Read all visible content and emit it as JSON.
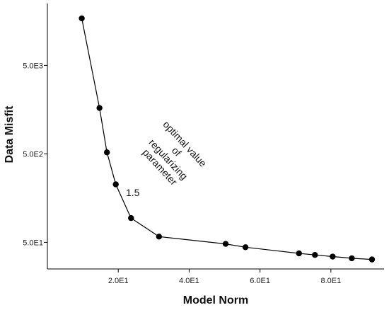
{
  "chart_data": {
    "type": "line",
    "title": "",
    "xlabel": "Model Norm",
    "ylabel": "Data Misfit",
    "x_scale": "linear",
    "y_scale": "log",
    "xlim": [
      0,
      95
    ],
    "ylim": [
      25,
      25000
    ],
    "x_ticks": [
      {
        "value": 20,
        "label": "2.0E1"
      },
      {
        "value": 40,
        "label": "4.0E1"
      },
      {
        "value": 60,
        "label": "6.0E1"
      },
      {
        "value": 80,
        "label": "8.0E1"
      }
    ],
    "y_ticks": [
      {
        "value": 50,
        "label": "5.0E1"
      },
      {
        "value": 500,
        "label": "5.0E2"
      },
      {
        "value": 5000,
        "label": "5.0E3"
      }
    ],
    "grid": false,
    "legend": false,
    "series": [
      {
        "x": [
          9.7,
          14.7,
          16.8,
          19.3,
          23.6,
          31.5,
          50.3,
          55.9,
          71.0,
          75.5,
          80.5,
          85.9,
          91.6
        ],
        "y": [
          17000,
          1650,
          520,
          226,
          94,
          58,
          48,
          44,
          37.5,
          36,
          34.5,
          33,
          32
        ]
      }
    ],
    "annotations": [
      {
        "lines": [
          "optimal value",
          "of",
          "regularizing",
          "parameter"
        ],
        "rotation": 47
      },
      {
        "text": "1.5"
      }
    ],
    "colors": {
      "line": "#000000",
      "marker": "#000000",
      "axis": "#000000"
    }
  }
}
